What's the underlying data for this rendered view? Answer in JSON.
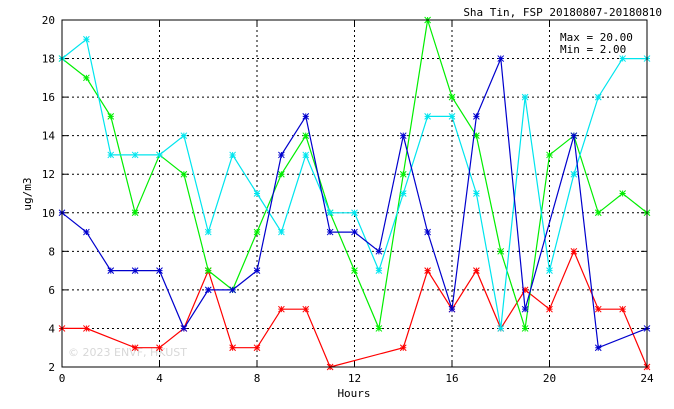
{
  "chart_data": {
    "type": "line",
    "title": "Sha Tin, FSP 20180807-20180810",
    "stats": {
      "max_label": "Max = 20.00",
      "min_label": "Min =  2.00"
    },
    "xlabel": "Hours",
    "ylabel": "ug/m3",
    "xlim": [
      0,
      24
    ],
    "ylim": [
      2,
      20
    ],
    "xticks": [
      0,
      4,
      8,
      12,
      16,
      20,
      24
    ],
    "yticks": [
      2,
      4,
      6,
      8,
      10,
      12,
      14,
      16,
      18,
      20
    ],
    "grid": true,
    "watermark": "© 2023  ENVF, HKUST",
    "series": [
      {
        "color": "#ff0000",
        "x": [
          0,
          1,
          3,
          4,
          5,
          6,
          7,
          8,
          9,
          10,
          11,
          14,
          15,
          16,
          17,
          18,
          19,
          20,
          21,
          22,
          23,
          24
        ],
        "y": [
          4,
          4,
          3,
          3,
          4,
          7,
          3,
          3,
          5,
          5,
          2,
          3,
          7,
          5,
          7,
          4,
          6,
          5,
          8,
          5,
          5,
          2
        ]
      },
      {
        "color": "#00ee00",
        "x": [
          0,
          1,
          2,
          3,
          4,
          5,
          6,
          7,
          8,
          9,
          10,
          11,
          12,
          13,
          14,
          15,
          16,
          17,
          18,
          19,
          20,
          21,
          22,
          23,
          24
        ],
        "y": [
          18,
          17,
          15,
          10,
          13,
          12,
          7,
          6,
          9,
          12,
          14,
          10,
          7,
          4,
          12,
          20,
          16,
          14,
          8,
          4,
          13,
          14,
          10,
          11,
          10
        ]
      },
      {
        "color": "#00e5ee",
        "x": [
          0,
          1,
          2,
          3,
          4,
          5,
          6,
          7,
          8,
          9,
          10,
          11,
          12,
          13,
          14,
          15,
          16,
          17,
          18,
          19,
          20,
          21,
          22,
          23,
          24
        ],
        "y": [
          18,
          19,
          13,
          13,
          13,
          14,
          9,
          13,
          11,
          9,
          13,
          10,
          10,
          7,
          11,
          15,
          15,
          11,
          4,
          16,
          7,
          12,
          16,
          18,
          18
        ]
      },
      {
        "color": "#0000cd",
        "x": [
          0,
          1,
          2,
          3,
          4,
          5,
          6,
          7,
          8,
          9,
          10,
          11,
          12,
          13,
          14,
          15,
          16,
          17,
          18,
          19,
          21,
          22,
          24
        ],
        "y": [
          10,
          9,
          7,
          7,
          7,
          4,
          6,
          6,
          7,
          13,
          15,
          9,
          9,
          8,
          14,
          9,
          5,
          15,
          18,
          5,
          14,
          3,
          4
        ]
      }
    ]
  }
}
